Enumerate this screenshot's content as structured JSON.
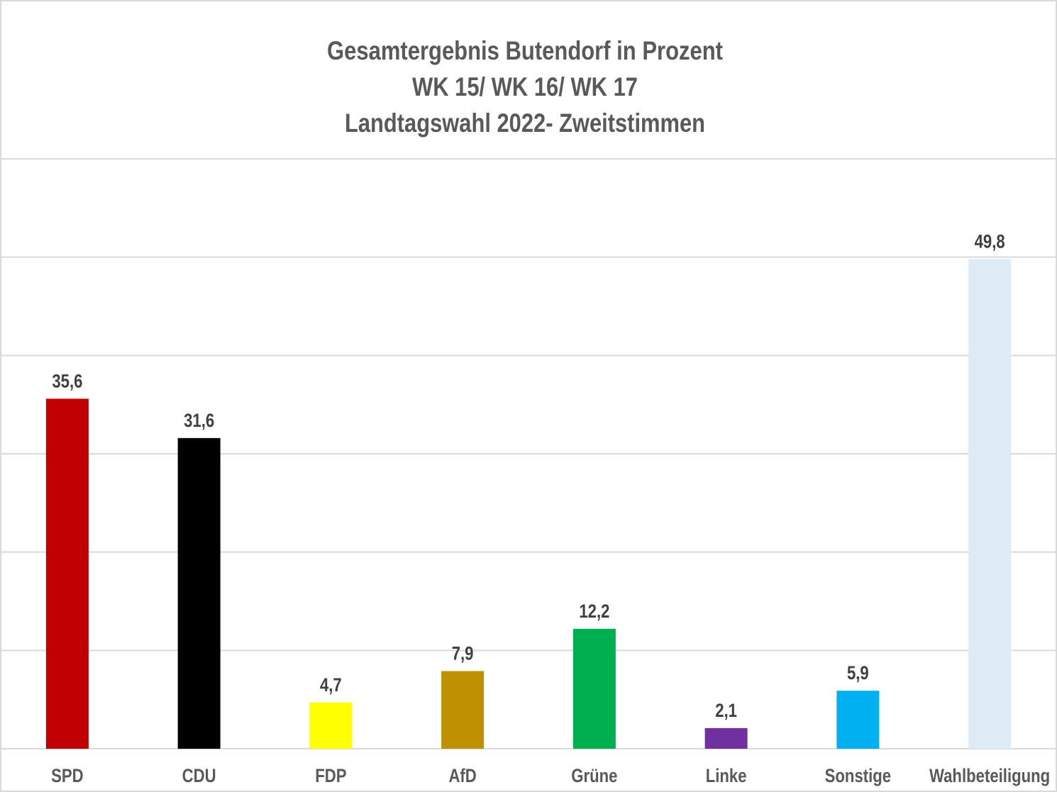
{
  "chart_data": {
    "type": "bar",
    "title_lines": [
      "Gesamtergebnis  Butendorf in Prozent",
      "WK 15/ WK 16/ WK 17",
      "Landtagswahl  2022- Zweitstimmen"
    ],
    "categories": [
      "SPD",
      "CDU",
      "FDP",
      "AfD",
      "Grüne",
      "Linke",
      "Sonstige",
      "Wahlbeteiligung"
    ],
    "values": [
      35.6,
      31.6,
      4.7,
      7.9,
      12.2,
      2.1,
      5.9,
      49.8
    ],
    "value_labels": [
      "35,6",
      "31,6",
      "4,7",
      "7,9",
      "12,2",
      "2,1",
      "5,9",
      "49,8"
    ],
    "colors": [
      "#C00000",
      "#000000",
      "#FFFF00",
      "#BF9000",
      "#00B050",
      "#7030A0",
      "#00B0F0",
      "#DDEBF7"
    ],
    "xlabel": "",
    "ylabel": "",
    "ylim": [
      0,
      60
    ],
    "grid_step": 10,
    "grid": true,
    "legend": "none"
  }
}
